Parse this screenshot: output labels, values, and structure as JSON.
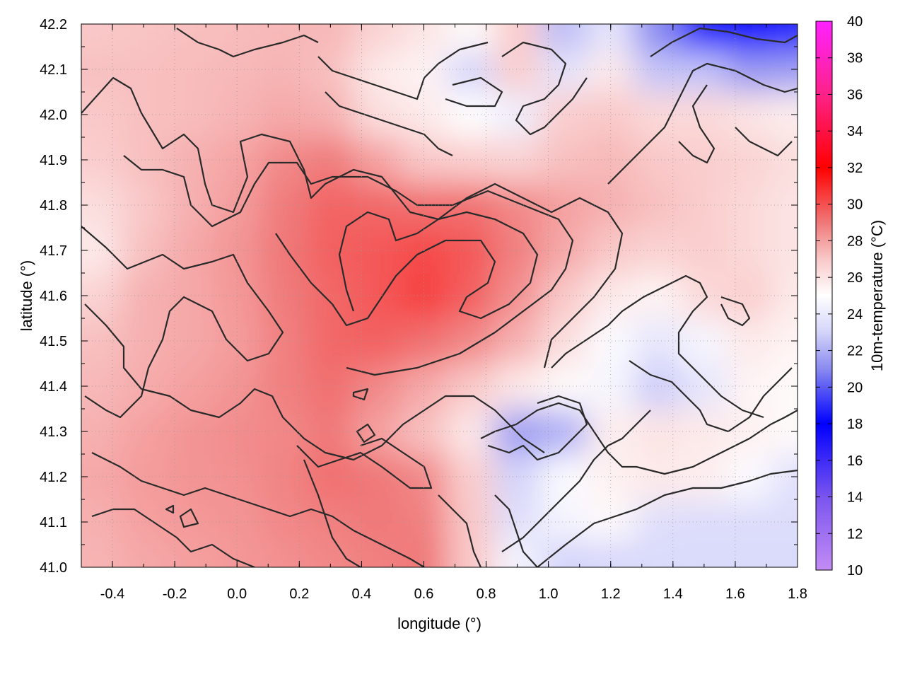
{
  "chart_data": {
    "type": "heatmap",
    "title": "",
    "xlabel": "longitude (°)",
    "ylabel": "latitude (°)",
    "colorbar_label": "10m-temperature (°C)",
    "xlim": [
      -0.5,
      1.8
    ],
    "ylim": [
      41.0,
      42.2
    ],
    "clim": [
      10,
      40
    ],
    "x_ticks": [
      -0.4,
      -0.2,
      0.0,
      0.2,
      0.4,
      0.6,
      0.8,
      1.0,
      1.2,
      1.4,
      1.6,
      1.8
    ],
    "x_tick_labels": [
      "-0.4",
      "-0.2",
      "0.0",
      "0.2",
      "0.4",
      "0.6",
      "0.8",
      "1.0",
      "1.2",
      "1.4",
      "1.6",
      "1.8"
    ],
    "y_ticks": [
      41.0,
      41.1,
      41.2,
      41.3,
      41.4,
      41.5,
      41.6,
      41.7,
      41.8,
      41.9,
      42.0,
      42.1,
      42.2
    ],
    "y_tick_labels": [
      "41.0",
      "41.1",
      "41.2",
      "41.3",
      "41.4",
      "41.5",
      "41.6",
      "41.7",
      "41.8",
      "41.9",
      "42.0",
      "42.1",
      "42.2"
    ],
    "colorbar_ticks": [
      10,
      12,
      14,
      16,
      18,
      20,
      22,
      24,
      26,
      28,
      30,
      32,
      34,
      36,
      38,
      40
    ],
    "colorbar_tick_labels": [
      "10",
      "12",
      "14",
      "16",
      "18",
      "20",
      "22",
      "24",
      "26",
      "28",
      "30",
      "32",
      "34",
      "36",
      "38",
      "40"
    ],
    "colormap": [
      {
        "value": 10,
        "color": "#c38cf5"
      },
      {
        "value": 14,
        "color": "#7a55ee"
      },
      {
        "value": 18,
        "color": "#0000ff"
      },
      {
        "value": 21,
        "color": "#8a8af0"
      },
      {
        "value": 23,
        "color": "#d4d4fa"
      },
      {
        "value": 25,
        "color": "#ffffff"
      },
      {
        "value": 27,
        "color": "#f9c8c8"
      },
      {
        "value": 29,
        "color": "#f07878"
      },
      {
        "value": 32,
        "color": "#ff0000"
      },
      {
        "value": 36,
        "color": "#ff2288"
      },
      {
        "value": 40,
        "color": "#ff22ff"
      }
    ],
    "grid": true,
    "contours": true,
    "field_samples": {
      "lon": [
        -0.45,
        -0.3,
        -0.15,
        0.0,
        0.15,
        0.3,
        0.45,
        0.6,
        0.75,
        0.9,
        1.05,
        1.2,
        1.35,
        1.5,
        1.65,
        1.78
      ],
      "lat": [
        41.02,
        41.1,
        41.2,
        41.3,
        41.4,
        41.5,
        41.6,
        41.7,
        41.8,
        41.9,
        42.0,
        42.1,
        42.18
      ],
      "temperature": [
        [
          27.5,
          27.8,
          28.0,
          28.2,
          28.4,
          28.6,
          28.8,
          29.0,
          27.0,
          24.5,
          23.0,
          23.2,
          23.3,
          23.3,
          23.3,
          23.3
        ],
        [
          27.6,
          28.0,
          28.2,
          28.3,
          28.6,
          28.8,
          29.0,
          28.8,
          27.0,
          23.5,
          24.5,
          25.2,
          23.5,
          23.4,
          23.4,
          23.4
        ],
        [
          27.8,
          28.1,
          28.3,
          28.4,
          28.7,
          29.2,
          29.0,
          28.6,
          26.8,
          23.0,
          24.8,
          25.5,
          25.8,
          25.6,
          24.8,
          23.6
        ],
        [
          27.6,
          28.0,
          28.3,
          28.5,
          28.6,
          29.0,
          28.0,
          27.2,
          25.8,
          21.5,
          22.0,
          25.6,
          26.0,
          25.8,
          25.5,
          25.2
        ],
        [
          27.4,
          27.7,
          28.0,
          28.3,
          28.8,
          29.2,
          28.6,
          27.8,
          27.0,
          25.8,
          25.2,
          24.6,
          22.8,
          23.8,
          25.4,
          25.2
        ],
        [
          27.2,
          27.6,
          27.8,
          28.1,
          28.8,
          29.4,
          29.6,
          29.2,
          28.6,
          27.6,
          26.2,
          24.8,
          23.8,
          24.6,
          25.8,
          25.4
        ],
        [
          26.6,
          27.6,
          27.8,
          28.2,
          28.9,
          29.4,
          29.8,
          30.4,
          29.6,
          28.4,
          27.0,
          25.8,
          25.4,
          26.4,
          26.8,
          25.8
        ],
        [
          25.8,
          27.2,
          27.8,
          28.3,
          29.0,
          29.6,
          29.8,
          30.2,
          29.8,
          28.8,
          27.8,
          27.0,
          26.6,
          26.8,
          26.4,
          26.0
        ],
        [
          26.2,
          27.0,
          27.6,
          28.1,
          28.9,
          29.5,
          29.4,
          29.2,
          29.2,
          28.6,
          28.0,
          27.6,
          27.2,
          26.8,
          26.4,
          26.0
        ],
        [
          26.8,
          27.2,
          27.6,
          27.9,
          28.6,
          28.9,
          28.0,
          27.0,
          26.8,
          26.6,
          27.2,
          27.4,
          27.0,
          26.8,
          26.6,
          26.2
        ],
        [
          27.0,
          27.2,
          27.3,
          27.5,
          27.8,
          27.6,
          26.2,
          25.8,
          25.0,
          24.2,
          26.8,
          27.0,
          26.4,
          26.4,
          26.0,
          25.6
        ],
        [
          27.2,
          27.2,
          27.3,
          27.4,
          27.5,
          27.2,
          25.8,
          25.4,
          23.0,
          26.8,
          23.8,
          25.8,
          22.6,
          22.6,
          21.4,
          21.6
        ],
        [
          27.0,
          27.1,
          27.2,
          27.3,
          27.4,
          27.4,
          26.6,
          26.0,
          25.2,
          26.8,
          22.4,
          23.8,
          21.0,
          18.6,
          18.2,
          18.8
        ]
      ]
    }
  }
}
